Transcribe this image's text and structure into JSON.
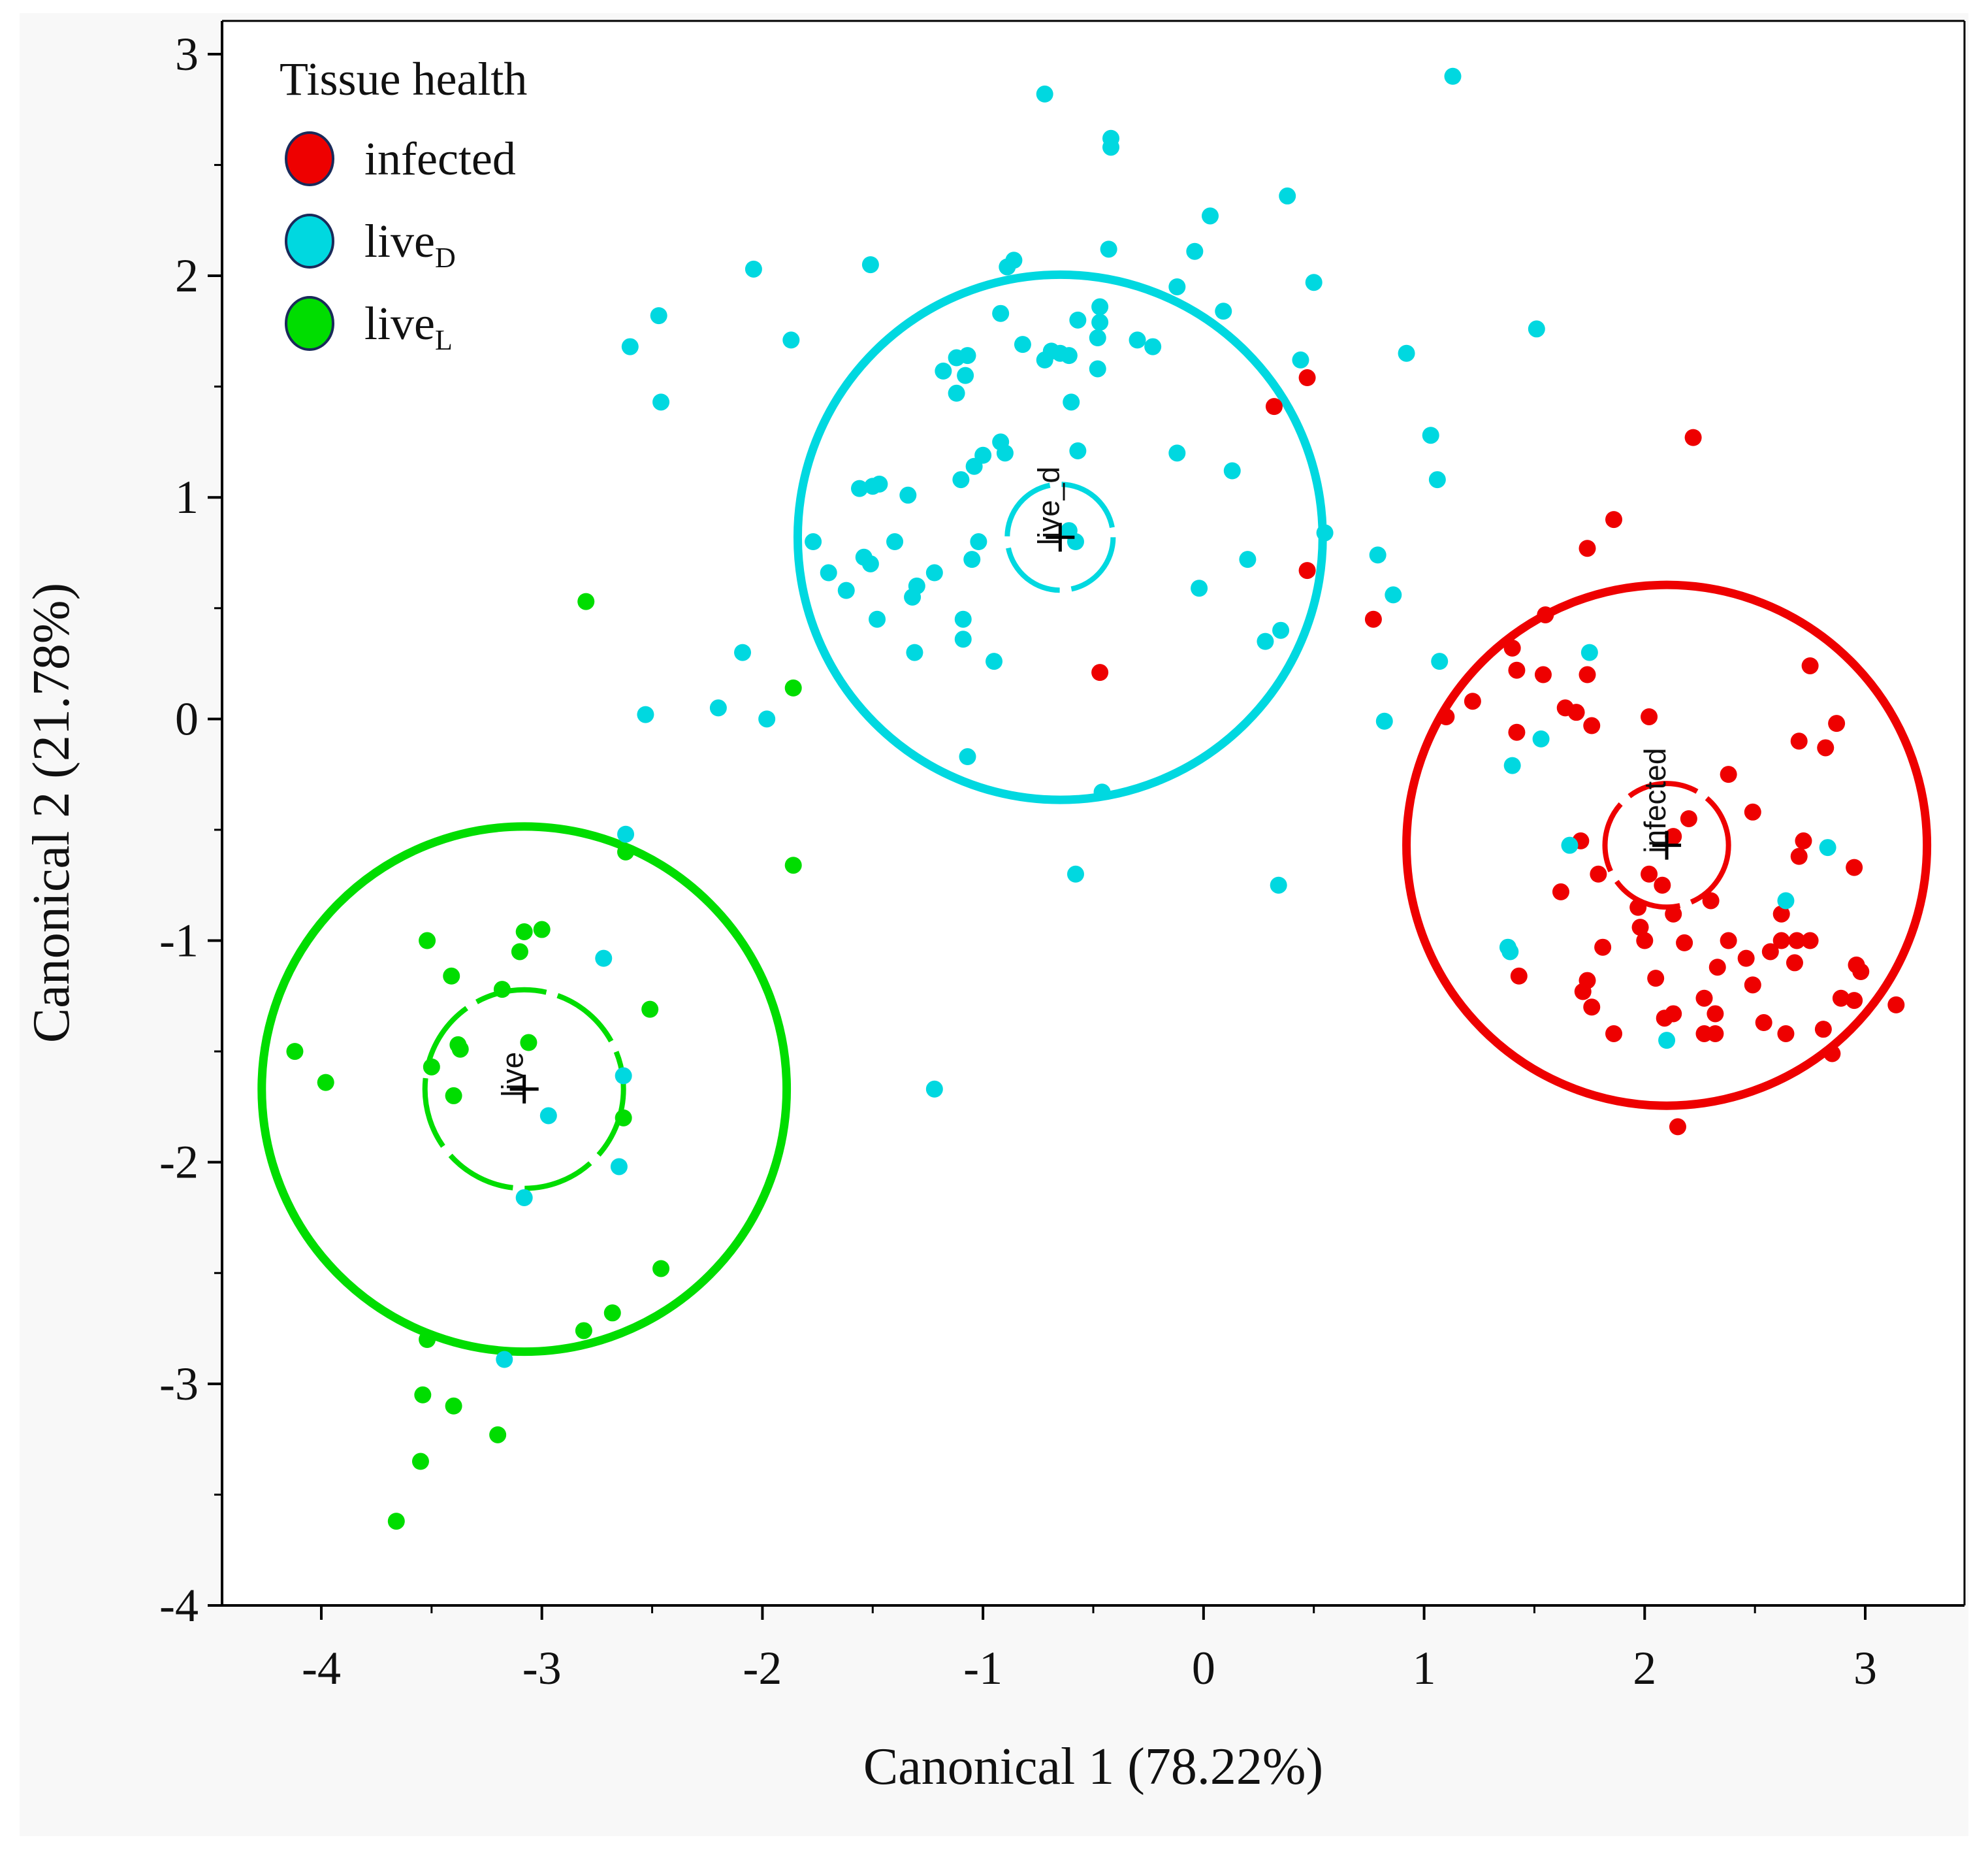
{
  "chart_data": {
    "type": "scatter",
    "title": "",
    "xlabel": "Canonical 1 (78.22%)",
    "ylabel": "Canonical 2 (21.78%)",
    "xlim": [
      -4.45,
      3.45
    ],
    "ylim": [
      -4.0,
      3.15
    ],
    "xticks": [
      -4,
      -3,
      -2,
      -1,
      0,
      1,
      2,
      3
    ],
    "yticks": [
      -4,
      -3,
      -2,
      -1,
      0,
      1,
      2,
      3
    ],
    "xtick_labels": [
      "-4",
      "-3",
      "-2",
      "-1",
      "0",
      "1",
      "2",
      "3"
    ],
    "ytick_labels": [
      "-4",
      "-3",
      "-2",
      "-1",
      "0",
      "1",
      "2",
      "3"
    ],
    "grid": false,
    "legend": {
      "title": "Tissue health",
      "position": "top-left",
      "entries": [
        {
          "key": "infected",
          "label": "infected",
          "sub": "",
          "color": "#ee0000"
        },
        {
          "key": "live_d",
          "label": "live",
          "sub": "D",
          "color": "#00d8e0"
        },
        {
          "key": "live_l",
          "label": "live",
          "sub": "L",
          "color": "#00dd00"
        }
      ]
    },
    "series": [
      {
        "name": "infected",
        "color": "#ee0000",
        "points": [
          [
            0.47,
            1.54
          ],
          [
            0.32,
            1.41
          ],
          [
            0.47,
            0.67
          ],
          [
            -0.47,
            0.21
          ],
          [
            0.77,
            0.45
          ],
          [
            1.86,
            0.9
          ],
          [
            1.74,
            0.77
          ],
          [
            2.22,
            1.27
          ],
          [
            1.55,
            0.47
          ],
          [
            1.4,
            0.32
          ],
          [
            1.22,
            0.08
          ],
          [
            1.42,
            0.22
          ],
          [
            1.54,
            0.2
          ],
          [
            1.74,
            0.2
          ],
          [
            1.1,
            0.01
          ],
          [
            1.42,
            -0.06
          ],
          [
            1.64,
            0.05
          ],
          [
            1.69,
            0.03
          ],
          [
            1.76,
            -0.03
          ],
          [
            2.02,
            0.01
          ],
          [
            2.75,
            0.24
          ],
          [
            2.87,
            -0.02
          ],
          [
            2.7,
            -0.1
          ],
          [
            2.82,
            -0.13
          ],
          [
            2.38,
            -0.25
          ],
          [
            2.2,
            -0.45
          ],
          [
            2.49,
            -0.42
          ],
          [
            1.71,
            -0.55
          ],
          [
            2.13,
            -0.53
          ],
          [
            2.08,
            -0.75
          ],
          [
            2.72,
            -0.55
          ],
          [
            2.7,
            -0.62
          ],
          [
            1.62,
            -0.78
          ],
          [
            1.79,
            -0.7
          ],
          [
            2.02,
            -0.7
          ],
          [
            1.97,
            -0.85
          ],
          [
            2.3,
            -0.82
          ],
          [
            2.62,
            -0.88
          ],
          [
            2.95,
            -0.67
          ],
          [
            2.13,
            -0.88
          ],
          [
            1.98,
            -0.94
          ],
          [
            2.62,
            -1.0
          ],
          [
            2.69,
            -1.0
          ],
          [
            2.75,
            -1.0
          ],
          [
            2.38,
            -1.0
          ],
          [
            2.57,
            -1.05
          ],
          [
            2.46,
            -1.08
          ],
          [
            2.0,
            -1.0
          ],
          [
            2.18,
            -1.01
          ],
          [
            1.81,
            -1.03
          ],
          [
            2.68,
            -1.1
          ],
          [
            2.96,
            -1.11
          ],
          [
            2.98,
            -1.14
          ],
          [
            2.33,
            -1.12
          ],
          [
            1.43,
            -1.16
          ],
          [
            1.74,
            -1.18
          ],
          [
            1.72,
            -1.23
          ],
          [
            2.05,
            -1.17
          ],
          [
            2.49,
            -1.2
          ],
          [
            2.27,
            -1.26
          ],
          [
            2.89,
            -1.26
          ],
          [
            2.95,
            -1.27
          ],
          [
            3.14,
            -1.29
          ],
          [
            1.76,
            -1.3
          ],
          [
            2.09,
            -1.35
          ],
          [
            2.13,
            -1.33
          ],
          [
            2.32,
            -1.33
          ],
          [
            2.54,
            -1.37
          ],
          [
            2.81,
            -1.4
          ],
          [
            1.86,
            -1.42
          ],
          [
            2.27,
            -1.42
          ],
          [
            2.32,
            -1.42
          ],
          [
            2.64,
            -1.42
          ],
          [
            2.85,
            -1.51
          ],
          [
            2.15,
            -1.84
          ]
        ]
      },
      {
        "name": "live_D",
        "color": "#00d8e0",
        "points": [
          [
            -0.72,
            2.82
          ],
          [
            1.13,
            2.9
          ],
          [
            -0.42,
            2.62
          ],
          [
            -0.42,
            2.58
          ],
          [
            0.38,
            2.36
          ],
          [
            0.03,
            2.27
          ],
          [
            -0.43,
            2.12
          ],
          [
            -0.04,
            2.11
          ],
          [
            -0.86,
            2.07
          ],
          [
            -0.89,
            2.04
          ],
          [
            -2.04,
            2.03
          ],
          [
            -1.51,
            2.05
          ],
          [
            0.5,
            1.97
          ],
          [
            -0.12,
            1.95
          ],
          [
            -0.47,
            1.86
          ],
          [
            0.09,
            1.84
          ],
          [
            -0.92,
            1.83
          ],
          [
            -0.57,
            1.8
          ],
          [
            -0.47,
            1.79
          ],
          [
            1.51,
            1.76
          ],
          [
            -2.47,
            1.82
          ],
          [
            -1.87,
            1.71
          ],
          [
            -0.48,
            1.72
          ],
          [
            -0.3,
            1.71
          ],
          [
            -0.23,
            1.68
          ],
          [
            -0.82,
            1.69
          ],
          [
            -0.69,
            1.66
          ],
          [
            -0.65,
            1.65
          ],
          [
            -1.12,
            1.63
          ],
          [
            -1.07,
            1.64
          ],
          [
            -0.61,
            1.64
          ],
          [
            -0.72,
            1.62
          ],
          [
            -2.6,
            1.68
          ],
          [
            0.92,
            1.65
          ],
          [
            0.44,
            1.62
          ],
          [
            -1.18,
            1.57
          ],
          [
            -1.08,
            1.55
          ],
          [
            -0.48,
            1.58
          ],
          [
            -1.12,
            1.47
          ],
          [
            -0.6,
            1.43
          ],
          [
            -2.46,
            1.43
          ],
          [
            1.03,
            1.28
          ],
          [
            -0.92,
            1.25
          ],
          [
            -0.9,
            1.2
          ],
          [
            -0.57,
            1.21
          ],
          [
            -1.0,
            1.19
          ],
          [
            -0.12,
            1.2
          ],
          [
            -1.04,
            1.14
          ],
          [
            1.06,
            1.08
          ],
          [
            -1.1,
            1.08
          ],
          [
            0.13,
            1.12
          ],
          [
            -1.56,
            1.04
          ],
          [
            -1.47,
            1.06
          ],
          [
            -1.5,
            1.05
          ],
          [
            -1.34,
            1.01
          ],
          [
            -1.77,
            0.8
          ],
          [
            -1.7,
            0.66
          ],
          [
            -1.54,
            0.73
          ],
          [
            -1.51,
            0.7
          ],
          [
            -1.4,
            0.8
          ],
          [
            -1.22,
            0.66
          ],
          [
            -1.02,
            0.8
          ],
          [
            -1.3,
            0.6
          ],
          [
            -1.32,
            0.55
          ],
          [
            -1.05,
            0.72
          ],
          [
            -0.58,
            0.8
          ],
          [
            -0.61,
            0.85
          ],
          [
            0.55,
            0.84
          ],
          [
            0.2,
            0.72
          ],
          [
            0.79,
            0.74
          ],
          [
            0.86,
            0.56
          ],
          [
            -1.62,
            0.58
          ],
          [
            -0.02,
            0.59
          ],
          [
            -1.48,
            0.45
          ],
          [
            -1.09,
            0.45
          ],
          [
            -1.09,
            0.36
          ],
          [
            0.35,
            0.4
          ],
          [
            0.28,
            0.35
          ],
          [
            -1.31,
            0.3
          ],
          [
            -2.09,
            0.3
          ],
          [
            -0.95,
            0.26
          ],
          [
            1.07,
            0.26
          ],
          [
            1.75,
            0.3
          ],
          [
            -2.53,
            0.02
          ],
          [
            -2.2,
            0.05
          ],
          [
            -1.98,
            0.0
          ],
          [
            0.82,
            -0.01
          ],
          [
            1.53,
            -0.09
          ],
          [
            -1.07,
            -0.17
          ],
          [
            1.4,
            -0.21
          ],
          [
            -0.46,
            -0.33
          ],
          [
            -2.62,
            -0.52
          ],
          [
            1.66,
            -0.57
          ],
          [
            2.83,
            -0.58
          ],
          [
            -0.58,
            -0.7
          ],
          [
            0.34,
            -0.75
          ],
          [
            2.64,
            -0.82
          ],
          [
            1.38,
            -1.03
          ],
          [
            1.39,
            -1.05
          ],
          [
            2.1,
            -1.45
          ],
          [
            -1.22,
            -1.67
          ],
          [
            -2.72,
            -1.08
          ],
          [
            -2.63,
            -1.61
          ],
          [
            -2.97,
            -1.79
          ],
          [
            -2.65,
            -2.02
          ],
          [
            -3.08,
            -2.16
          ],
          [
            -3.17,
            -2.89
          ]
        ]
      },
      {
        "name": "live_L",
        "color": "#00dd00",
        "points": [
          [
            -2.8,
            0.53
          ],
          [
            -1.86,
            0.14
          ],
          [
            -1.86,
            -0.66
          ],
          [
            -2.62,
            -0.6
          ],
          [
            -3.08,
            -0.96
          ],
          [
            -3.0,
            -0.95
          ],
          [
            -3.1,
            -1.05
          ],
          [
            -3.52,
            -1.0
          ],
          [
            -3.41,
            -1.16
          ],
          [
            -3.18,
            -1.22
          ],
          [
            -3.38,
            -1.47
          ],
          [
            -3.06,
            -1.46
          ],
          [
            -3.37,
            -1.49
          ],
          [
            -3.5,
            -1.57
          ],
          [
            -3.4,
            -1.7
          ],
          [
            -2.51,
            -1.31
          ],
          [
            -4.12,
            -1.5
          ],
          [
            -3.98,
            -1.64
          ],
          [
            -2.63,
            -1.8
          ],
          [
            -3.52,
            -2.8
          ],
          [
            -2.81,
            -2.76
          ],
          [
            -2.68,
            -2.68
          ],
          [
            -2.46,
            -2.48
          ],
          [
            -3.54,
            -3.05
          ],
          [
            -3.4,
            -3.1
          ],
          [
            -3.2,
            -3.23
          ],
          [
            -3.55,
            -3.35
          ],
          [
            -3.66,
            -3.62
          ]
        ]
      }
    ],
    "centroids": [
      {
        "name": "infected",
        "label": "infected",
        "x": 2.1,
        "y": -0.57,
        "inner_r": 0.28,
        "outer_r": 1.18,
        "color": "#ee0000"
      },
      {
        "name": "live_d",
        "label": "live_d",
        "x": -0.65,
        "y": 0.82,
        "inner_r": 0.24,
        "outer_r": 1.19,
        "color": "#00d8e0"
      },
      {
        "name": "live",
        "label": "live",
        "x": -3.08,
        "y": -1.67,
        "inner_r": 0.45,
        "outer_r": 1.19,
        "color": "#00dd00"
      }
    ]
  }
}
